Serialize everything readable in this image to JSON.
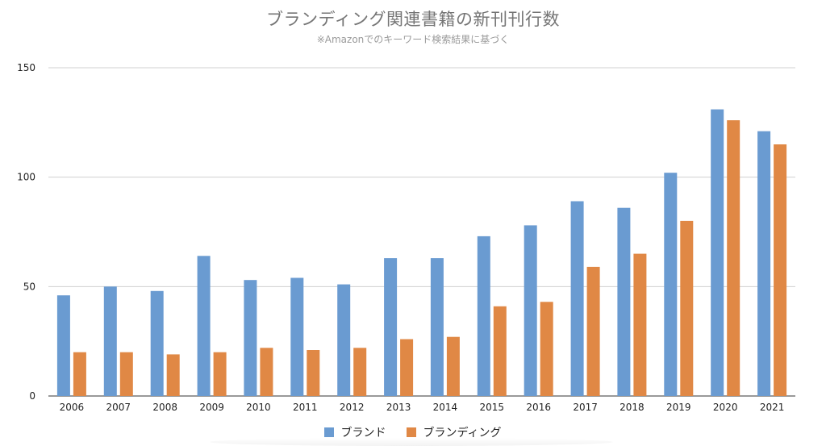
{
  "chart_data": {
    "type": "bar",
    "title": "ブランディング関連書籍の新刊刊行数",
    "subtitle": "※Amazonでのキーワード検索結果に基づく",
    "categories": [
      "2006",
      "2007",
      "2008",
      "2009",
      "2010",
      "2011",
      "2012",
      "2013",
      "2014",
      "2015",
      "2016",
      "2017",
      "2018",
      "2019",
      "2020",
      "2021"
    ],
    "series": [
      {
        "name": "ブランド",
        "color": "#6a9bd1",
        "values": [
          46,
          50,
          48,
          64,
          53,
          54,
          51,
          63,
          63,
          73,
          78,
          89,
          86,
          102,
          131,
          121
        ]
      },
      {
        "name": "ブランディング",
        "color": "#e08845",
        "values": [
          20,
          20,
          19,
          20,
          22,
          21,
          22,
          26,
          27,
          41,
          43,
          59,
          65,
          80,
          126,
          115
        ]
      }
    ],
    "yticks": [
      0,
      50,
      100,
      150
    ],
    "ylim": [
      0,
      150
    ],
    "grid": true,
    "legend_position": "bottom"
  }
}
